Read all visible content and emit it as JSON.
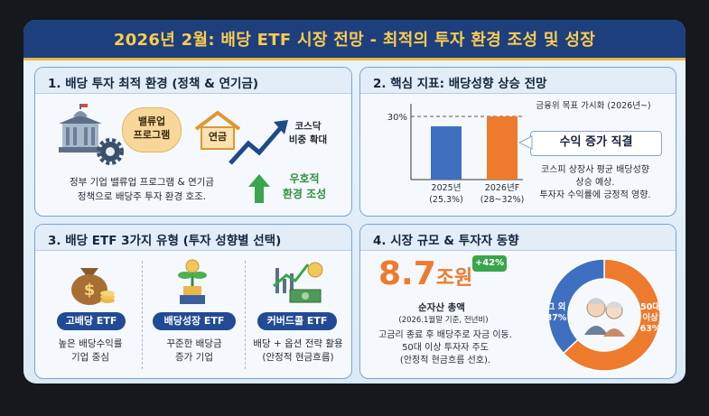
{
  "title": "2026년 2월: 배당 ETF 시장 전망 - 최적의 투자 환경 조성 및 성장",
  "panel1": {
    "title": "1. 배당 투자 최적 환경 (정책 & 연기금)",
    "badge_line1": "밸류업",
    "badge_line2": "프로그램",
    "house_label": "연금",
    "kosdaq_line1": "코스닥",
    "kosdaq_line2": "비중 확대",
    "desc_line1": "정부 기업 밸류업 프로그램 & 연기금",
    "desc_line2": "정책으로 배당주 투자 환경 호조.",
    "favorable_line1": "우호적",
    "favorable_line2": "환경 조성"
  },
  "panel2": {
    "title": "2. 핵심 지표: 배당성향 상승 전망",
    "target_label": "금융위 목표 가시화 (2026년~)",
    "callout": "수익 증가 직결",
    "desc_line1": "코스피 상장사 평균 배당성향",
    "desc_line2": "상승 예상.",
    "desc_line3": "투자자 수익률에 긍정적 영향."
  },
  "panel3": {
    "title": "3. 배당 ETF 3가지 유형 (투자 성향별 선택)",
    "types": [
      {
        "label": "고배당 ETF",
        "desc_line1": "높은 배당수익률",
        "desc_line2": "기업 중심"
      },
      {
        "label": "배당성장 ETF",
        "desc_line1": "꾸준한 배당금",
        "desc_line2": "증가 기업"
      },
      {
        "label": "커버드콜 ETF",
        "desc_line1": "배당 + 옵션 전략 활용",
        "desc_line2": "(안정적 현금흐름)"
      }
    ]
  },
  "panel4": {
    "title": "4. 시장 규모 & 투자자 동향",
    "big_number": "8.7",
    "big_unit": "조원",
    "growth_badge": "+42%",
    "aum_label": "순자산 총액",
    "aum_note": "(2026.1월말 기준, 전년비)",
    "desc_line1": "고금리 종료 후 배당주로 자금 이동.",
    "desc_line2": "50대 이상 투자자 주도",
    "desc_line3": "(안정적 현금흐름 선호)."
  },
  "chart_data": [
    {
      "type": "bar",
      "categories": [
        "2025년\n(25.3%)",
        "2026년F\n(28~32%)"
      ],
      "category_line1": [
        "2025년",
        "2026년F"
      ],
      "category_line2": [
        "(25.3%)",
        "(28~32%)"
      ],
      "values": [
        25.3,
        30
      ],
      "colors": [
        "#3f6fc0",
        "#ee7a2d"
      ],
      "y_ref_label": "30%",
      "y_ref_value": 30,
      "ylim": [
        0,
        36
      ],
      "grid": false
    },
    {
      "type": "pie",
      "slices": [
        {
          "label_line1": "50대",
          "label_line2": "이상",
          "label_line3": "63%",
          "value": 63,
          "color": "#ee7a2d"
        },
        {
          "label_line1": "그 외",
          "label_line2": "37%",
          "value": 37,
          "color": "#3f6fc0"
        }
      ]
    }
  ],
  "colors": {
    "title_bg": "#1d3f7d",
    "title_text": "#ffcc4d",
    "pill_bg": "#224a95",
    "green": "#3aa54c",
    "orange": "#ee7a2d",
    "blue": "#3f6fc0"
  },
  "icons": [
    "government-building-icon",
    "gear-icon",
    "house-icon",
    "rising-arrow-icon",
    "up-arrow-icon",
    "money-bag-icon",
    "plant-coin-icon",
    "chart-cash-icon",
    "elderly-couple-icon"
  ]
}
